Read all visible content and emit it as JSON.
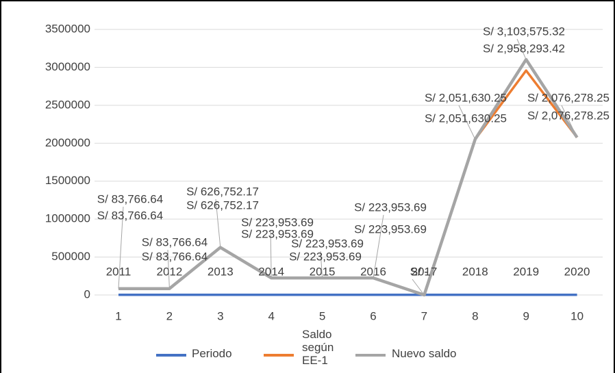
{
  "chart_data": {
    "type": "line",
    "categories": [
      "1",
      "2",
      "3",
      "4",
      "5",
      "6",
      "7",
      "8",
      "9",
      "10"
    ],
    "series": [
      {
        "name": "Periodo",
        "color": "#4472c4",
        "values": [
          2011,
          2012,
          2013,
          2014,
          2015,
          2016,
          2017,
          2018,
          2019,
          2020
        ]
      },
      {
        "name": "Saldo según EE-1",
        "color": "#ed7d31",
        "values": [
          83766.64,
          83766.64,
          626752.17,
          223953.69,
          223953.69,
          223953.69,
          0,
          2051630.25,
          2958293.42,
          2076278.25
        ],
        "value_labels": [
          "S/ 83,766.64",
          "S/ 83,766.64",
          "S/ 626,752.17",
          "S/ 223,953.69",
          "S/ 223,953.69",
          "S/ 223,953.69",
          "S/ -",
          "S/ 2,051,630.25",
          "S/ 2,958,293.42",
          "S/ 2,076,278.25"
        ]
      },
      {
        "name": "Nuevo saldo",
        "color": "#a5a5a5",
        "values": [
          83766.64,
          83766.64,
          626752.17,
          223953.69,
          223953.69,
          223953.69,
          0,
          2051630.25,
          3103575.32,
          2076278.25
        ],
        "value_labels": [
          "S/ 83,766.64",
          "S/ 83,766.64",
          "S/ 626,752.17",
          "S/ 223,953.69",
          "S/ 223,953.69",
          "S/ 223,953.69",
          "S/ -",
          "S/ 2,051,630.25",
          "S/ 3,103,575.32",
          "S/ 2,076,278.25"
        ]
      }
    ],
    "ylim": [
      0,
      3500000
    ],
    "yticks": [
      0,
      500000,
      1000000,
      1500000,
      2000000,
      2500000,
      3000000,
      3500000
    ],
    "grid": true,
    "legend": "bottom"
  }
}
